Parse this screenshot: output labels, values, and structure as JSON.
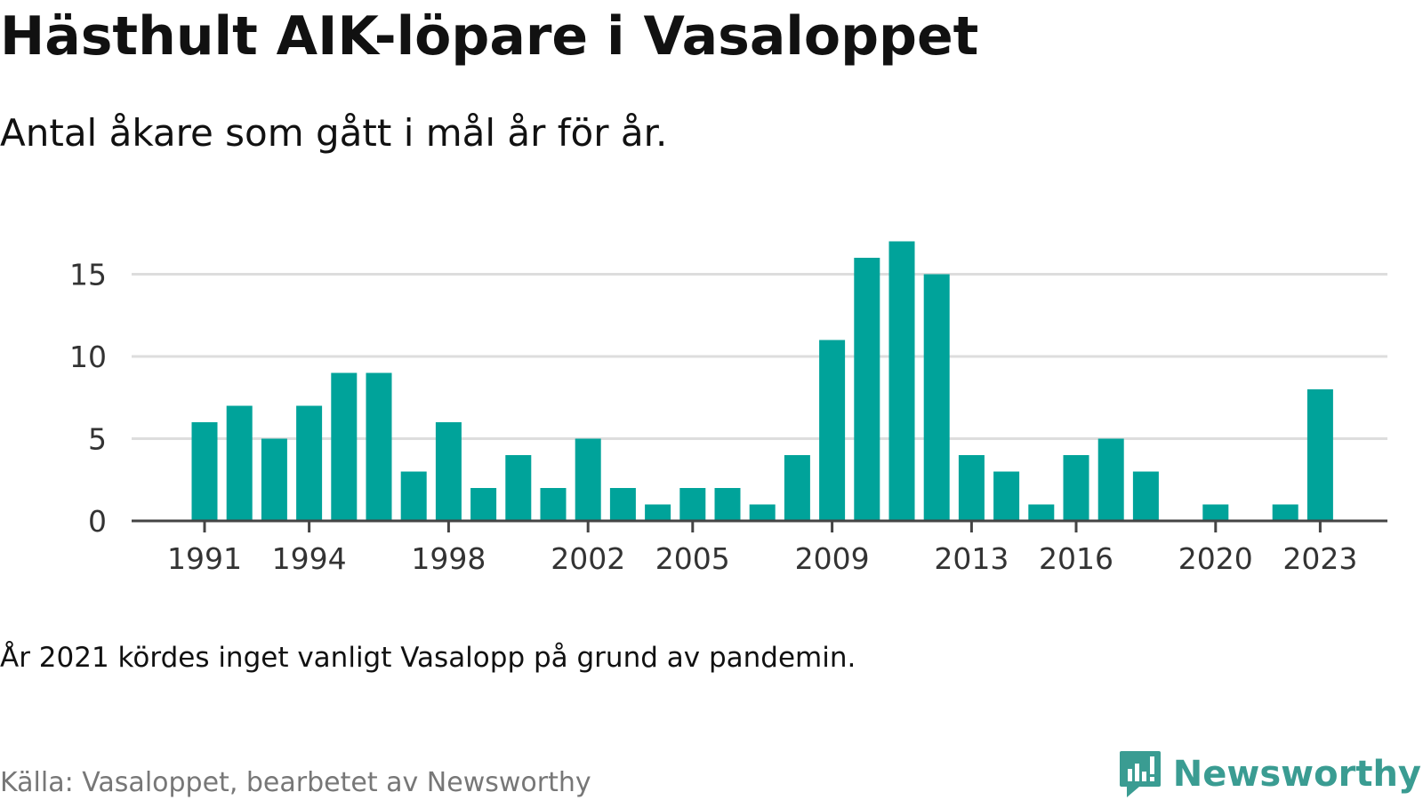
{
  "title": "Hästhult AIK-löpare i Vasaloppet",
  "subtitle": "Antal åkare som gått i mål år för år.",
  "note": "År 2021 kördes inget vanligt Vasalopp på grund av pandemin.",
  "source": "Källa: Vasaloppet, bearbetet av Newsworthy",
  "logo": {
    "text": "Newsworthy",
    "icon": "newsworthy-logo-icon"
  },
  "colors": {
    "bar": "#00A39A",
    "grid": "#dddddd",
    "axis": "#444444",
    "logo": "#3a9c92"
  },
  "chart_data": {
    "type": "bar",
    "title": "Hästhult AIK-löpare i Vasaloppet",
    "subtitle": "Antal åkare som gått i mål år för år.",
    "xlabel": "",
    "ylabel": "",
    "ylim": [
      0,
      17
    ],
    "grid": true,
    "legend": "none",
    "y_ticks": [
      0,
      5,
      10,
      15
    ],
    "x_tick_labels": [
      "1991",
      "1994",
      "1998",
      "2002",
      "2005",
      "2009",
      "2013",
      "2016",
      "2020",
      "2023"
    ],
    "categories": [
      1991,
      1992,
      1993,
      1994,
      1995,
      1996,
      1997,
      1998,
      1999,
      2000,
      2001,
      2002,
      2003,
      2004,
      2005,
      2006,
      2007,
      2008,
      2009,
      2010,
      2011,
      2012,
      2013,
      2014,
      2015,
      2016,
      2017,
      2018,
      2019,
      2020,
      2021,
      2022,
      2023
    ],
    "values": [
      6,
      7,
      5,
      7,
      9,
      9,
      3,
      6,
      2,
      4,
      2,
      5,
      2,
      1,
      2,
      2,
      1,
      4,
      11,
      16,
      17,
      15,
      4,
      3,
      1,
      4,
      5,
      3,
      0,
      1,
      0,
      1,
      8
    ]
  }
}
